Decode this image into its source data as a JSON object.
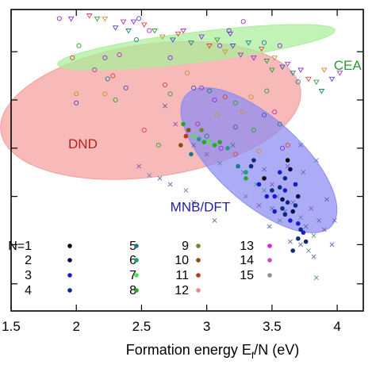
{
  "chart_data": {
    "type": "scatter",
    "title": "",
    "xlabel": "Formation energy E",
    "xlabel_sub": "f",
    "xlabel_tail": "/N (eV)",
    "ylabel": "",
    "xlim": [
      1.5,
      4.2
    ],
    "ylim": [
      0,
      1
    ],
    "grid": false,
    "x_ticks": [
      1.5,
      2,
      2.5,
      3,
      3.5,
      4
    ],
    "x_tick_labels": [
      "1.5",
      "2",
      "2.5",
      "3",
      "3.5",
      "4"
    ],
    "colors": {
      "DND": "#f4a09c",
      "CEA": "#a8ee98",
      "MNB/DFT": "#8c8cf2",
      "DND_label": "#b52020",
      "CEA_label": "#2c9a2c",
      "MNB_label": "#1e1ea0"
    },
    "regions": [
      {
        "name": "DND",
        "center": [
          2.57,
          0.665
        ],
        "rx": 1.16,
        "ry": 0.22,
        "angle_deg": -8,
        "label_pos": [
          2.05,
          0.54
        ]
      },
      {
        "name": "CEA",
        "center": [
          2.92,
          0.875
        ],
        "rx": 1.07,
        "ry": 0.05,
        "angle_deg": -7,
        "label_pos": [
          4.08,
          0.8
        ]
      },
      {
        "name": "MNB/DFT",
        "center": [
          3.4,
          0.5
        ],
        "rx": 0.75,
        "ry": 0.14,
        "angle_deg": 42,
        "label_pos": [
          2.95,
          0.33
        ]
      }
    ],
    "legend": {
      "entries": [
        {
          "label": "N=1",
          "color": "#000000"
        },
        {
          "label": "2",
          "color": "#0a0a4a"
        },
        {
          "label": "3",
          "color": "#1a1ad0"
        },
        {
          "label": "4",
          "color": "#0c2a80"
        },
        {
          "label": "5",
          "color": "#1a7a8a"
        },
        {
          "label": "6",
          "color": "#18a080"
        },
        {
          "label": "7",
          "color": "#50e050"
        },
        {
          "label": "8",
          "color": "#22aa22"
        },
        {
          "label": "9",
          "color": "#6a8a20"
        },
        {
          "label": "10",
          "color": "#8a4a10"
        },
        {
          "label": "11",
          "color": "#c83020"
        },
        {
          "label": "12",
          "color": "#e88a88"
        },
        {
          "label": "13",
          "color": "#e020e0"
        },
        {
          "label": "14",
          "color": "#c050c0"
        },
        {
          "label": "15",
          "color": "#909090"
        }
      ]
    },
    "series": [
      {
        "marker": "open-circle",
        "points": [
          [
            1.87,
            0.97
          ],
          [
            1.97,
            0.84
          ],
          [
            2.02,
            0.88
          ],
          [
            2.0,
            0.72
          ],
          [
            2.0,
            0.69
          ],
          [
            2.14,
            0.8
          ],
          [
            2.24,
            0.77
          ],
          [
            2.22,
            0.84
          ],
          [
            2.28,
            0.78
          ],
          [
            2.3,
            0.7
          ],
          [
            2.22,
            0.72
          ],
          [
            2.38,
            0.74
          ],
          [
            2.33,
            0.85
          ],
          [
            2.46,
            0.9
          ],
          [
            2.72,
            0.84
          ],
          [
            2.68,
            0.75
          ],
          [
            2.72,
            0.72
          ],
          [
            2.85,
            0.79
          ],
          [
            2.9,
            0.74
          ],
          [
            2.96,
            0.74
          ],
          [
            3.02,
            0.73
          ],
          [
            3.06,
            0.7
          ],
          [
            3.14,
            0.71
          ],
          [
            3.22,
            0.69
          ],
          [
            3.27,
            0.66
          ],
          [
            3.22,
            0.61
          ],
          [
            2.93,
            0.62
          ],
          [
            3.0,
            0.58
          ],
          [
            3.11,
            0.54
          ],
          [
            3.22,
            0.52
          ],
          [
            3.36,
            0.6
          ],
          [
            3.4,
            0.53
          ],
          [
            3.44,
            0.65
          ],
          [
            3.52,
            0.66
          ],
          [
            3.56,
            0.62
          ],
          [
            3.58,
            0.54
          ],
          [
            3.62,
            0.55
          ],
          [
            3.46,
            0.73
          ],
          [
            3.34,
            0.71
          ],
          [
            3.17,
            0.93
          ],
          [
            3.28,
            0.96
          ],
          [
            3.44,
            0.89
          ],
          [
            3.56,
            0.88
          ],
          [
            2.52,
            0.6
          ],
          [
            2.63,
            0.55
          ],
          [
            3.08,
            0.65
          ],
          [
            2.48,
            0.97
          ],
          [
            2.56,
            0.93
          ],
          [
            3.7,
            0.76
          ],
          [
            3.1,
            0.88
          ]
        ]
      },
      {
        "marker": "open-triangle",
        "points": [
          [
            1.96,
            0.97
          ],
          [
            2.1,
            0.98
          ],
          [
            2.16,
            0.97
          ],
          [
            2.22,
            0.97
          ],
          [
            2.3,
            0.94
          ],
          [
            2.36,
            0.96
          ],
          [
            2.4,
            0.93
          ],
          [
            2.44,
            0.96
          ],
          [
            2.52,
            0.95
          ],
          [
            2.6,
            0.93
          ],
          [
            2.66,
            0.91
          ],
          [
            2.74,
            0.9
          ],
          [
            2.82,
            0.93
          ],
          [
            2.88,
            0.89
          ],
          [
            2.96,
            0.91
          ],
          [
            3.02,
            0.88
          ],
          [
            3.08,
            0.9
          ],
          [
            3.14,
            0.86
          ],
          [
            3.2,
            0.88
          ],
          [
            3.26,
            0.85
          ],
          [
            3.32,
            0.89
          ],
          [
            3.36,
            0.84
          ],
          [
            3.42,
            0.87
          ],
          [
            3.46,
            0.83
          ],
          [
            3.52,
            0.84
          ],
          [
            3.58,
            0.81
          ],
          [
            3.62,
            0.82
          ],
          [
            3.66,
            0.79
          ],
          [
            3.72,
            0.8
          ],
          [
            3.78,
            0.77
          ],
          [
            3.84,
            0.76
          ],
          [
            3.9,
            0.8
          ],
          [
            3.96,
            0.77
          ],
          [
            4.02,
            0.79
          ],
          [
            3.88,
            0.73
          ],
          [
            3.18,
            0.92
          ],
          [
            2.78,
            0.92
          ],
          [
            3.5,
            0.8
          ]
        ]
      },
      {
        "marker": "cross",
        "points": [
          [
            2.68,
            0.68
          ],
          [
            2.76,
            0.62
          ],
          [
            2.86,
            0.6
          ],
          [
            2.9,
            0.55
          ],
          [
            3.0,
            0.52
          ],
          [
            3.1,
            0.49
          ],
          [
            3.2,
            0.55
          ],
          [
            3.28,
            0.46
          ],
          [
            3.38,
            0.42
          ],
          [
            3.44,
            0.47
          ],
          [
            3.5,
            0.42
          ],
          [
            3.54,
            0.38
          ],
          [
            3.6,
            0.33
          ],
          [
            3.66,
            0.36
          ],
          [
            3.72,
            0.31
          ],
          [
            3.76,
            0.28
          ],
          [
            3.8,
            0.34
          ],
          [
            3.82,
            0.25
          ],
          [
            3.86,
            0.3
          ],
          [
            3.9,
            0.27
          ],
          [
            3.68,
            0.42
          ],
          [
            3.74,
            0.46
          ],
          [
            3.62,
            0.48
          ],
          [
            3.56,
            0.3
          ],
          [
            3.48,
            0.28
          ],
          [
            3.4,
            0.35
          ],
          [
            3.3,
            0.38
          ],
          [
            3.92,
            0.37
          ],
          [
            3.82,
            0.18
          ],
          [
            3.78,
            0.2
          ],
          [
            3.72,
            0.22
          ],
          [
            3.64,
            0.23
          ],
          [
            3.84,
            0.11
          ],
          [
            3.96,
            0.22
          ],
          [
            2.48,
            0.48
          ],
          [
            2.56,
            0.45
          ],
          [
            2.64,
            0.44
          ],
          [
            2.72,
            0.42
          ],
          [
            2.84,
            0.4
          ],
          [
            2.9,
            0.36
          ],
          [
            3.06,
            0.3
          ],
          [
            3.84,
            0.5
          ],
          [
            3.72,
            0.55
          ],
          [
            3.98,
            0.3
          ],
          [
            3.44,
            0.4
          ],
          [
            3.5,
            0.34
          ]
        ]
      },
      {
        "marker": "filled-circle",
        "points": [
          [
            2.82,
            0.62
          ],
          [
            2.86,
            0.6
          ],
          [
            2.9,
            0.58
          ],
          [
            2.94,
            0.57
          ],
          [
            2.98,
            0.56
          ],
          [
            3.02,
            0.56
          ],
          [
            3.06,
            0.55
          ],
          [
            2.84,
            0.58
          ],
          [
            2.96,
            0.6
          ],
          [
            2.8,
            0.55
          ],
          [
            2.88,
            0.52
          ],
          [
            3.1,
            0.56
          ],
          [
            3.16,
            0.54
          ],
          [
            3.24,
            0.48
          ],
          [
            3.3,
            0.46
          ],
          [
            3.34,
            0.48
          ],
          [
            3.3,
            0.44
          ],
          [
            3.4,
            0.42
          ],
          [
            3.44,
            0.44
          ],
          [
            3.5,
            0.4
          ],
          [
            3.52,
            0.38
          ],
          [
            3.56,
            0.41
          ],
          [
            3.58,
            0.37
          ],
          [
            3.6,
            0.4
          ],
          [
            3.62,
            0.36
          ],
          [
            3.6,
            0.32
          ],
          [
            3.64,
            0.3
          ],
          [
            3.66,
            0.33
          ],
          [
            3.68,
            0.35
          ],
          [
            3.7,
            0.29
          ],
          [
            3.72,
            0.27
          ],
          [
            3.7,
            0.24
          ],
          [
            3.74,
            0.26
          ],
          [
            3.76,
            0.23
          ],
          [
            3.6,
            0.44
          ],
          [
            3.56,
            0.46
          ],
          [
            3.64,
            0.47
          ],
          [
            3.68,
            0.42
          ],
          [
            3.58,
            0.34
          ],
          [
            3.52,
            0.33
          ],
          [
            3.66,
            0.2
          ],
          [
            3.62,
            0.5
          ],
          [
            3.36,
            0.5
          ],
          [
            3.46,
            0.38
          ],
          [
            3.7,
            0.38
          ]
        ],
        "colors": [
          "#22aa22",
          "#8a4a10",
          "#50e050",
          "#18a080",
          "#22aa22",
          "#50e050",
          "#22aa22",
          "#c83020",
          "#6a8a20",
          "#8a4a10",
          "#1a7a8a",
          "#22aa22",
          "#18a080",
          "#1a7a8a",
          "#18a080",
          "#0c2a80",
          "#22aa22",
          "#1a1ad0",
          "#000000",
          "#0c2a80",
          "#1a1ad0",
          "#0c2a80",
          "#0a0a4a",
          "#1a1ad0",
          "#0c2a80",
          "#0c2a80",
          "#1a1ad0",
          "#0a0a4a",
          "#0c2a80",
          "#1a1ad0",
          "#0c2a80",
          "#0c2a80",
          "#1a1ad0",
          "#0c2a80",
          "#0c2a80",
          "#1a1ad0",
          "#0a0a4a",
          "#1a1ad0",
          "#0c2a80",
          "#1a1ad0",
          "#0c2a80",
          "#000000",
          "#0c2a80",
          "#1a1ad0",
          "#0a0a4a"
        ]
      }
    ]
  }
}
